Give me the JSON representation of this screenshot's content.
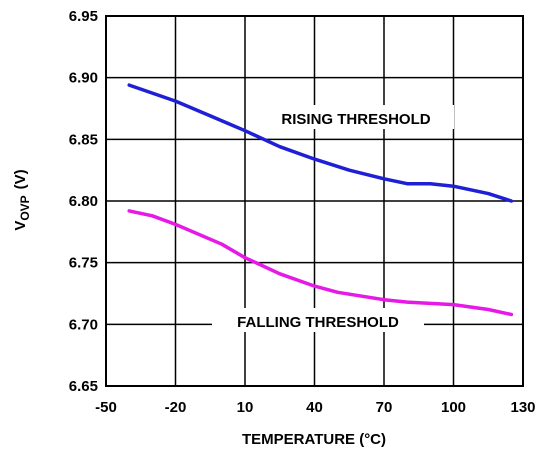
{
  "chart_data": {
    "type": "line",
    "xlabel": "TEMPERATURE (°C)",
    "ylabel": "V",
    "ylabel_subscript": "OVP",
    "ylabel_unit": "(V)",
    "xlim": [
      -50,
      130
    ],
    "ylim": [
      6.65,
      6.95
    ],
    "xticks": [
      "-50",
      "-20",
      "10",
      "40",
      "70",
      "100",
      "130"
    ],
    "yticks": [
      "6.65",
      "6.70",
      "6.75",
      "6.80",
      "6.85",
      "6.90",
      "6.95"
    ],
    "grid": true,
    "series": [
      {
        "name": "RISING THRESHOLD",
        "color": "#1f1fd6",
        "x": [
          -40,
          -20,
          -5,
          10,
          25,
          40,
          55,
          70,
          80,
          90,
          100,
          115,
          125
        ],
        "y": [
          6.894,
          6.881,
          6.869,
          6.857,
          6.844,
          6.834,
          6.825,
          6.818,
          6.814,
          6.814,
          6.812,
          6.806,
          6.8
        ]
      },
      {
        "name": "FALLING THRESHOLD",
        "color": "#e619e6",
        "x": [
          -40,
          -30,
          -20,
          0,
          10,
          25,
          40,
          50,
          70,
          80,
          100,
          115,
          125
        ],
        "y": [
          6.792,
          6.788,
          6.781,
          6.765,
          6.754,
          6.741,
          6.731,
          6.726,
          6.72,
          6.718,
          6.716,
          6.712,
          6.708
        ]
      }
    ]
  }
}
